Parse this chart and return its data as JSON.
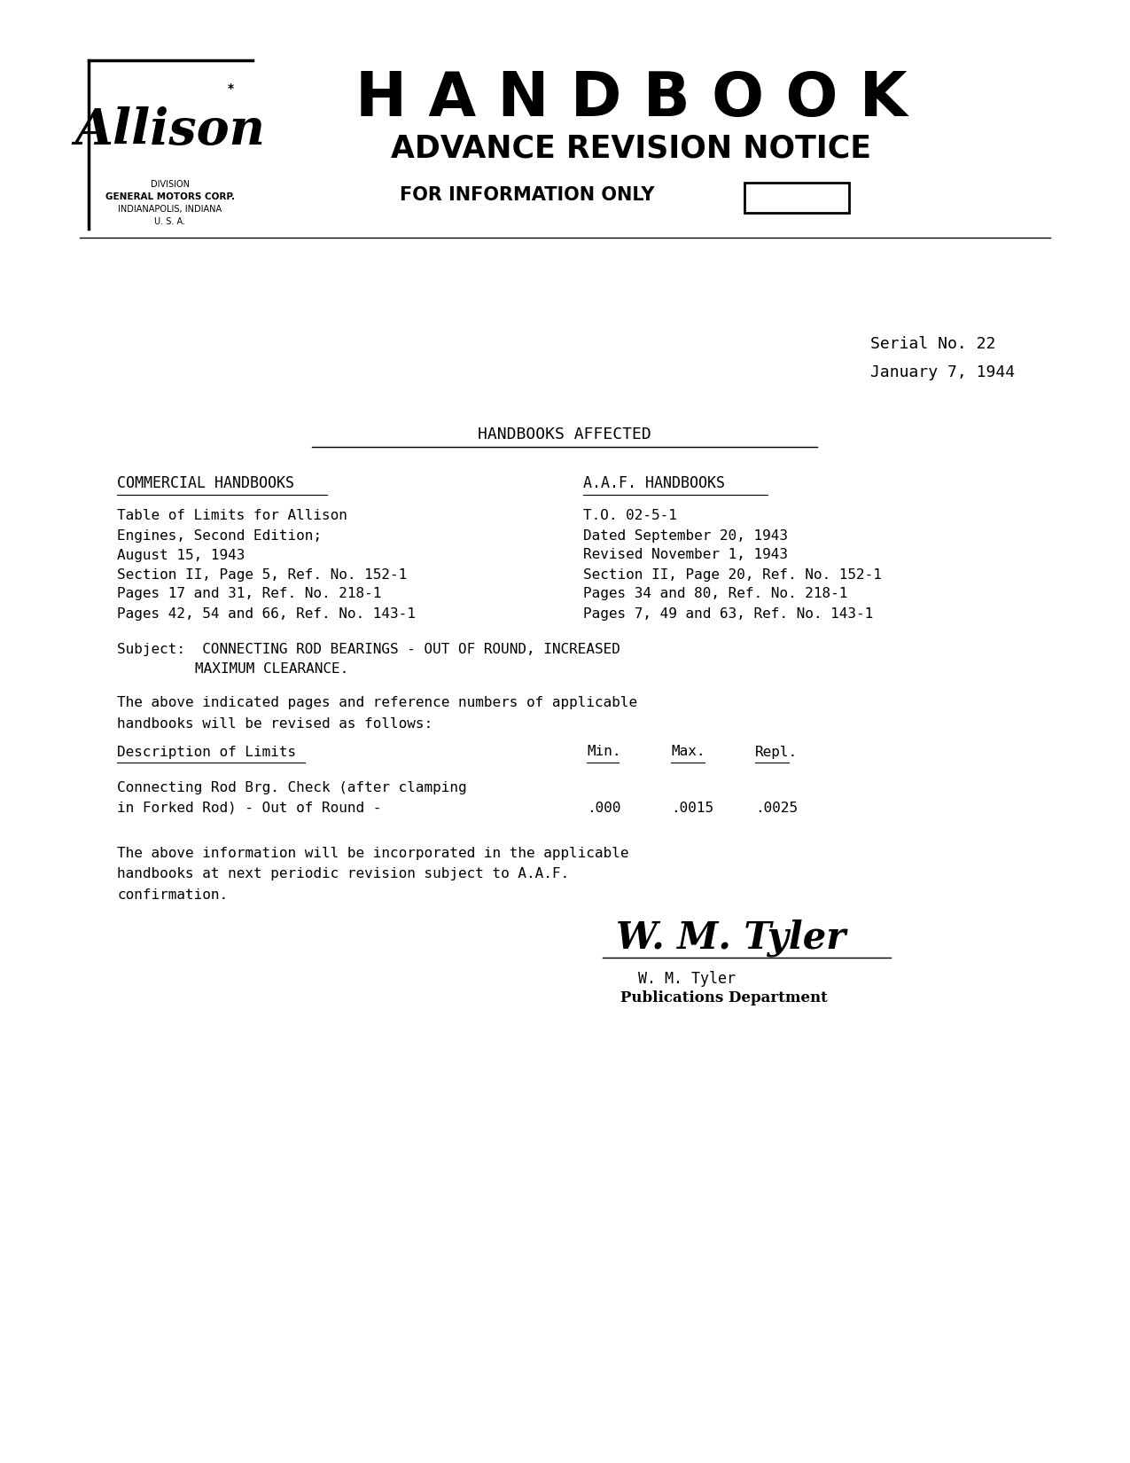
{
  "bg_color": "#ffffff",
  "page_width": 12.75,
  "page_height": 16.5,
  "header": {
    "handbook_title": "H A N D B O O K",
    "revision_notice": "ADVANCE REVISION NOTICE",
    "for_info": "FOR INFORMATION ONLY",
    "division_lines": [
      "DIVISION",
      "GENERAL MOTORS CORP.",
      "INDIANAPOLIS, INDIANA",
      "U. S. A."
    ]
  },
  "serial_no": "Serial No. 22",
  "date": "January 7, 1944",
  "section_title": "HANDBOOKS AFFECTED",
  "col1_header": "COMMERCIAL HANDBOOKS",
  "col2_header": "A.A.F. HANDBOOKS",
  "col1_lines": [
    "Table of Limits for Allison",
    "Engines, Second Edition;",
    "August 15, 1943",
    "Section II, Page 5, Ref. No. 152-1",
    "Pages 17 and 31, Ref. No. 218-1",
    "Pages 42, 54 and 66, Ref. No. 143-1"
  ],
  "col2_lines": [
    "T.O. 02-5-1",
    "Dated September 20, 1943",
    "Revised November 1, 1943",
    "Section II, Page 20, Ref. No. 152-1",
    "Pages 34 and 80, Ref. No. 218-1",
    "Pages 7, 49 and 63, Ref. No. 143-1"
  ],
  "subject_label": "Subject:",
  "subject_text1": "CONNECTING ROD BEARINGS - OUT OF ROUND, INCREASED",
  "subject_text2": "MAXIMUM CLEARANCE.",
  "para1_line1": "The above indicated pages and reference numbers of applicable",
  "para1_line2": "handbooks will be revised as follows:",
  "table_header_desc": "Description of Limits",
  "table_header_min": "Min.",
  "table_header_max": "Max.",
  "table_header_repl": "Repl.",
  "table_row1_desc1": "Connecting Rod Brg. Check (after clamping",
  "table_row1_desc2": "in Forked Rod) - Out of Round -",
  "table_row1_min": ".000",
  "table_row1_max": ".0015",
  "table_row1_repl": ".0025",
  "para2_line1": "The above information will be incorporated in the applicable",
  "para2_line2": "handbooks at next periodic revision subject to A.A.F.",
  "para2_line3": "confirmation.",
  "sig_name": "W. M. Tyler",
  "sig_dept": "Publications Department"
}
